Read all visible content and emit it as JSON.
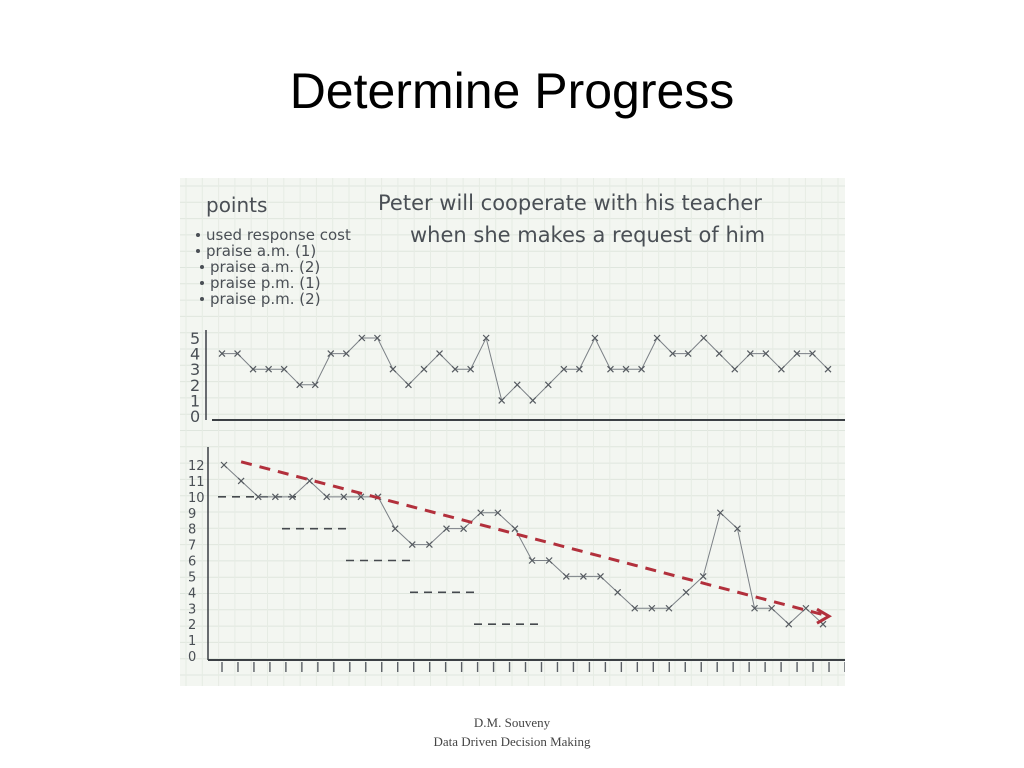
{
  "slide": {
    "title": "Determine Progress"
  },
  "footer": {
    "author": "D.M. Souveny",
    "course": "Data Driven Decision Making"
  },
  "chart_data": [
    {
      "type": "line",
      "title": "Peter will cooperate with his teacher when she makes a request of him",
      "legend_heading": "points",
      "legend_items": [
        "used response cost",
        "praise a.m. (1)",
        "praise a.m. (2)",
        "praise p.m. (1)",
        "praise p.m. (2)"
      ],
      "ylim": [
        0,
        5
      ],
      "y_ticks": [
        "0",
        "1",
        "2",
        "3",
        "4",
        "5"
      ],
      "grid": true,
      "series": [
        {
          "values": [
            4,
            4,
            3,
            3,
            3,
            2,
            2,
            4,
            4,
            5,
            5,
            3,
            2,
            3,
            4,
            3,
            3,
            5,
            1,
            2,
            1,
            2,
            3,
            3,
            5,
            3,
            3,
            3,
            5,
            4,
            4,
            5,
            4,
            3,
            4,
            4,
            3,
            4,
            4,
            3
          ]
        }
      ]
    },
    {
      "type": "line",
      "ylim": [
        0,
        12
      ],
      "y_ticks": [
        "0",
        "1",
        "2",
        "3",
        "4",
        "5",
        "6",
        "7",
        "8",
        "9",
        "10",
        "11",
        "12"
      ],
      "grid": true,
      "series": [
        {
          "values": [
            12,
            11,
            10,
            10,
            10,
            11,
            10,
            10,
            10,
            10,
            8,
            7,
            7,
            8,
            8,
            9,
            9,
            8,
            6,
            6,
            5,
            5,
            5,
            4,
            3,
            3,
            3,
            4,
            5,
            9,
            8,
            3,
            3,
            2,
            3,
            2
          ]
        }
      ],
      "trend_line": {
        "from": 12.2,
        "to": 2.5,
        "color": "#b2303c"
      },
      "criterion_lines": [
        10,
        8,
        6,
        4,
        2
      ]
    }
  ]
}
